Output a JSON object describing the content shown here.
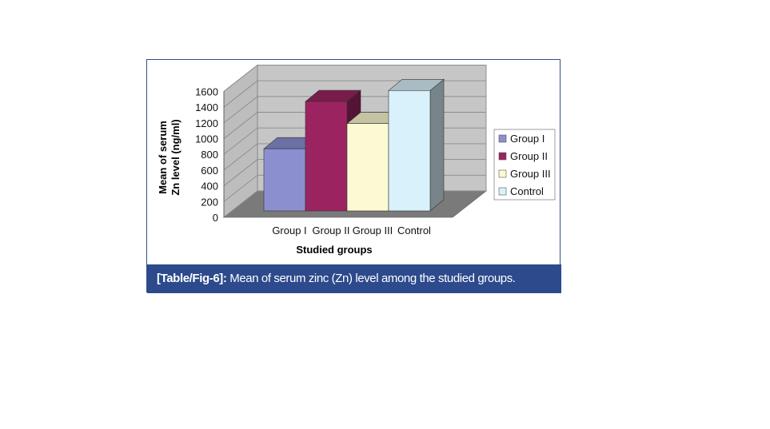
{
  "caption": {
    "label": "[Table/Fig-6]:",
    "text": " Mean of serum zinc (Zn) level among the studied groups."
  },
  "chart_data": {
    "type": "bar",
    "categories": [
      "Group I",
      "Group II",
      "Group III",
      "Control"
    ],
    "values": [
      790,
      1390,
      1110,
      1530
    ],
    "colors": [
      "#8b8fd0",
      "#9b2460",
      "#fcfad2",
      "#d9f1fb"
    ],
    "xlabel": "Studied groups",
    "ylabel": [
      "Mean of serum",
      "Zn level (ng/ml)"
    ],
    "ylim": [
      0,
      1600
    ],
    "yticks": [
      "0",
      "200",
      "400",
      "600",
      "800",
      "1000",
      "1200",
      "1400",
      "1600"
    ],
    "legend": [
      "Group I",
      "Group II",
      "Group III",
      "Control"
    ],
    "legend_position": "right",
    "grid": true,
    "style": "3d"
  }
}
